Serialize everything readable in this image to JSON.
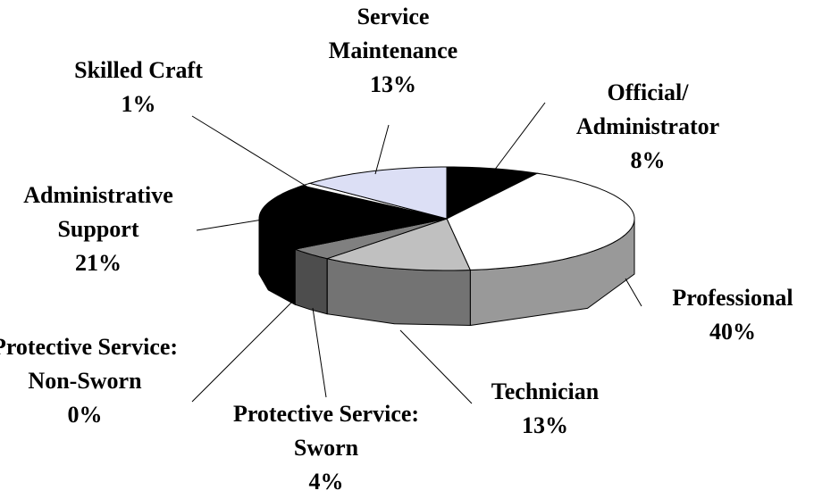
{
  "chart_data": {
    "type": "pie3d",
    "categories": [
      "Official/ Administrator",
      "Professional",
      "Technician",
      "Protective Service: Sworn",
      "Protective Service: Non-Sworn",
      "Administrative Support",
      "Skilled Craft",
      "Service Maintenance"
    ],
    "values": [
      8,
      40,
      13,
      4,
      0,
      21,
      1,
      13
    ],
    "value_labels": [
      "8%",
      "40%",
      "13%",
      "4%",
      "0%",
      "21%",
      "1%",
      "13%"
    ],
    "colors": [
      "#000000",
      "#ffffff",
      "#c0c0c0",
      "#808080",
      "#606060",
      "#000000",
      "#ffffff",
      "#dcdff5"
    ]
  }
}
